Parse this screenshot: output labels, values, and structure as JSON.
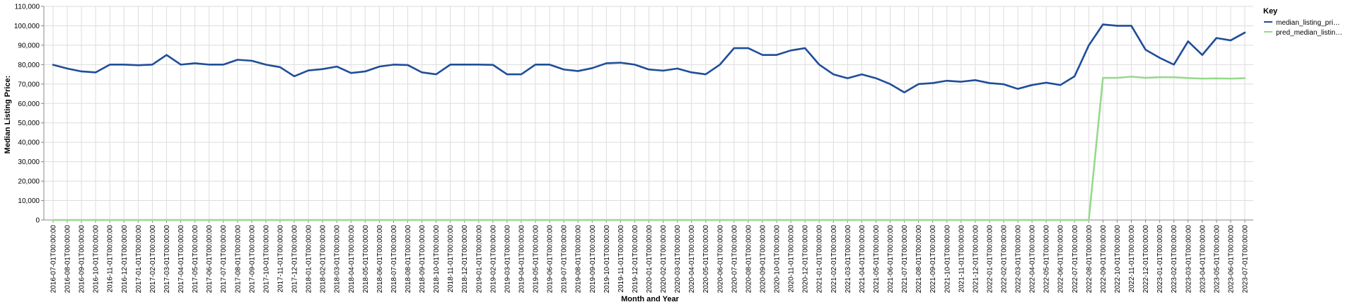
{
  "chart_data": {
    "type": "line",
    "xlabel": "Month and Year",
    "ylabel": "Median Listing Price:",
    "ylim": [
      0,
      110000
    ],
    "yticks": [
      "0",
      "10,000",
      "20,000",
      "30,000",
      "40,000",
      "50,000",
      "60,000",
      "70,000",
      "80,000",
      "90,000",
      "100,000",
      "110,000"
    ],
    "grid": true,
    "legend": {
      "title": "Key",
      "placement": "top-right",
      "entries": [
        "median_listing_pri…",
        "pred_median_listin…"
      ]
    },
    "x": [
      "2016-07-01T00:00:00",
      "2016-08-01T00:00:00",
      "2016-09-01T00:00:00",
      "2016-10-01T00:00:00",
      "2016-11-01T00:00:00",
      "2016-12-01T00:00:00",
      "2017-01-01T00:00:00",
      "2017-02-01T00:00:00",
      "2017-03-01T00:00:00",
      "2017-04-01T00:00:00",
      "2017-05-01T00:00:00",
      "2017-06-01T00:00:00",
      "2017-07-01T00:00:00",
      "2017-08-01T00:00:00",
      "2017-09-01T00:00:00",
      "2017-10-01T00:00:00",
      "2017-11-01T00:00:00",
      "2017-12-01T00:00:00",
      "2018-01-01T00:00:00",
      "2018-02-01T00:00:00",
      "2018-03-01T00:00:00",
      "2018-04-01T00:00:00",
      "2018-05-01T00:00:00",
      "2018-06-01T00:00:00",
      "2018-07-01T00:00:00",
      "2018-08-01T00:00:00",
      "2018-09-01T00:00:00",
      "2018-10-01T00:00:00",
      "2018-11-01T00:00:00",
      "2018-12-01T00:00:00",
      "2019-01-01T00:00:00",
      "2019-02-01T00:00:00",
      "2019-03-01T00:00:00",
      "2019-04-01T00:00:00",
      "2019-05-01T00:00:00",
      "2019-06-01T00:00:00",
      "2019-07-01T00:00:00",
      "2019-08-01T00:00:00",
      "2019-09-01T00:00:00",
      "2019-10-01T00:00:00",
      "2019-11-01T00:00:00",
      "2019-12-01T00:00:00",
      "2020-01-01T00:00:00",
      "2020-02-01T00:00:00",
      "2020-03-01T00:00:00",
      "2020-04-01T00:00:00",
      "2020-05-01T00:00:00",
      "2020-06-01T00:00:00",
      "2020-07-01T00:00:00",
      "2020-08-01T00:00:00",
      "2020-09-01T00:00:00",
      "2020-10-01T00:00:00",
      "2020-11-01T00:00:00",
      "2020-12-01T00:00:00",
      "2021-01-01T00:00:00",
      "2021-02-01T00:00:00",
      "2021-03-01T00:00:00",
      "2021-04-01T00:00:00",
      "2021-05-01T00:00:00",
      "2021-06-01T00:00:00",
      "2021-07-01T00:00:00",
      "2021-08-01T00:00:00",
      "2021-09-01T00:00:00",
      "2021-10-01T00:00:00",
      "2021-11-01T00:00:00",
      "2021-12-01T00:00:00",
      "2022-01-01T00:00:00",
      "2022-02-01T00:00:00",
      "2022-03-01T00:00:00",
      "2022-04-01T00:00:00",
      "2022-05-01T00:00:00",
      "2022-06-01T00:00:00",
      "2022-07-01T00:00:00",
      "2022-08-01T00:00:00",
      "2022-09-01T00:00:00",
      "2022-10-01T00:00:00",
      "2022-11-01T00:00:00",
      "2022-12-01T00:00:00",
      "2023-01-01T00:00:00",
      "2023-02-01T00:00:00",
      "2023-03-01T00:00:00",
      "2023-04-01T00:00:00",
      "2023-05-01T00:00:00",
      "2023-06-01T00:00:00",
      "2023-07-01T00:00:00"
    ],
    "series": [
      {
        "name": "median_listing_pri…",
        "color": "#1f4e99",
        "values": [
          79900,
          78000,
          76500,
          76000,
          80000,
          80000,
          79700,
          80000,
          85000,
          80000,
          80700,
          80000,
          80000,
          82500,
          82000,
          80000,
          78700,
          74000,
          77000,
          77700,
          79000,
          75700,
          76500,
          79000,
          80000,
          79800,
          76000,
          75000,
          80000,
          80000,
          80000,
          79900,
          75000,
          75000,
          80000,
          80000,
          77500,
          76700,
          78200,
          80700,
          81000,
          80000,
          77500,
          76900,
          78000,
          76000,
          75000,
          80000,
          88500,
          88500,
          85000,
          85000,
          87300,
          88500,
          80000,
          75000,
          73000,
          75000,
          73000,
          70000,
          65700,
          70000,
          70500,
          71700,
          71200,
          72000,
          70500,
          69900,
          67500,
          69500,
          70700,
          69500,
          74000,
          89900,
          100700,
          100000,
          100000,
          87700,
          83500,
          80000,
          92000,
          85000,
          93700,
          92500,
          96500
        ]
      },
      {
        "name": "pred_median_listin…",
        "color": "#98d98e",
        "values": [
          0,
          0,
          0,
          0,
          0,
          0,
          0,
          0,
          0,
          0,
          0,
          0,
          0,
          0,
          0,
          0,
          0,
          0,
          0,
          0,
          0,
          0,
          0,
          0,
          0,
          0,
          0,
          0,
          0,
          0,
          0,
          0,
          0,
          0,
          0,
          0,
          0,
          0,
          0,
          0,
          0,
          0,
          0,
          0,
          0,
          0,
          0,
          0,
          0,
          0,
          0,
          0,
          0,
          0,
          0,
          0,
          0,
          0,
          0,
          0,
          0,
          0,
          0,
          0,
          0,
          0,
          0,
          0,
          0,
          0,
          0,
          0,
          0,
          0,
          73200,
          73200,
          73800,
          73200,
          73500,
          73500,
          73100,
          72800,
          72900,
          72800,
          73000
        ]
      }
    ]
  }
}
